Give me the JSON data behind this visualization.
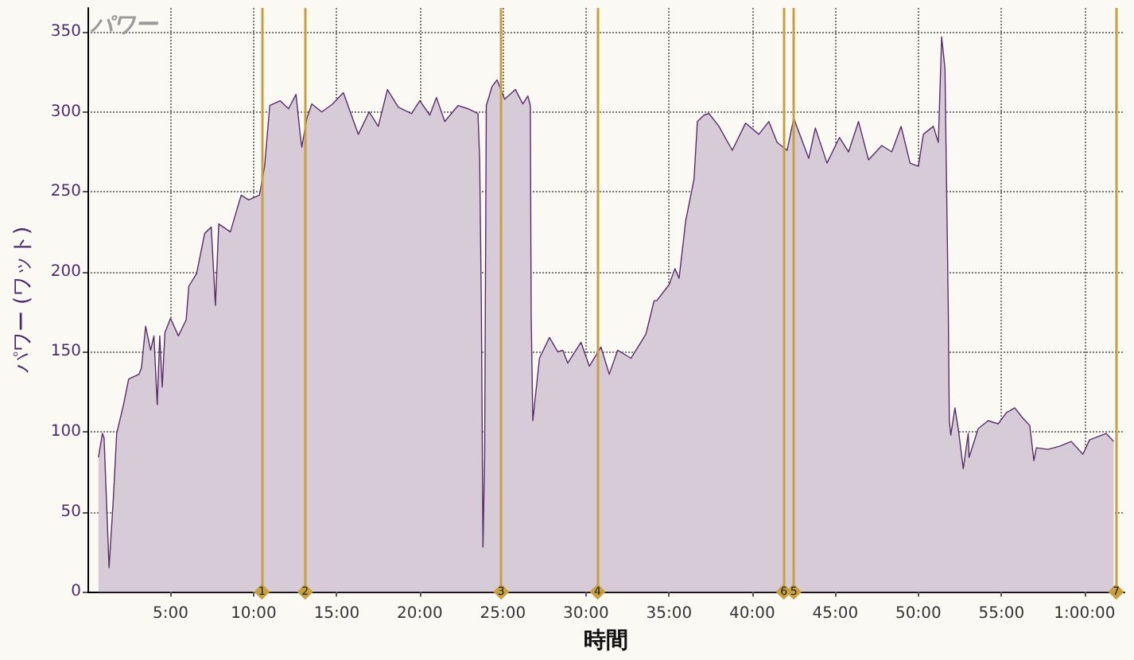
{
  "chart_data": {
    "type": "area",
    "title": "パワー",
    "xlabel": "時間",
    "ylabel": "パワー (ワット)",
    "xlim": [
      0,
      62.4
    ],
    "ylim": [
      0,
      365
    ],
    "xticks": [
      {
        "value": 5,
        "label": "5:00"
      },
      {
        "value": 10,
        "label": "10:00"
      },
      {
        "value": 15,
        "label": "15:00"
      },
      {
        "value": 20,
        "label": "20:00"
      },
      {
        "value": 25,
        "label": "25:00"
      },
      {
        "value": 30,
        "label": "30:00"
      },
      {
        "value": 35,
        "label": "35:00"
      },
      {
        "value": 40,
        "label": "40:00"
      },
      {
        "value": 45,
        "label": "45:00"
      },
      {
        "value": 50,
        "label": "50:00"
      },
      {
        "value": 55,
        "label": "55:00"
      },
      {
        "value": 60,
        "label": "1:00:00"
      }
    ],
    "yticks": [
      0,
      50,
      100,
      150,
      200,
      250,
      300,
      350
    ],
    "grid": true,
    "marker": "none",
    "line_style": "solid",
    "annotations": [
      {
        "text": "1",
        "x": 10.5,
        "y": 0
      },
      {
        "text": "2",
        "x": 13.1,
        "y": 0
      },
      {
        "text": "3",
        "x": 24.9,
        "y": 0
      },
      {
        "text": "4",
        "x": 30.7,
        "y": 0
      },
      {
        "text": "6",
        "x": 41.9,
        "y": 0
      },
      {
        "text": "5",
        "x": 42.5,
        "y": 0
      },
      {
        "text": "7",
        "x": 61.9,
        "y": 0
      }
    ],
    "series": [
      {
        "color": "#5a2d6a",
        "x": [
          0.66,
          0.9,
          1.0,
          1.3,
          1.55,
          1.76,
          2.17,
          2.48,
          3.1,
          3.25,
          3.5,
          3.8,
          4.0,
          4.2,
          4.35,
          4.5,
          4.66,
          5.0,
          5.47,
          5.94,
          6.1,
          6.57,
          7.05,
          7.45,
          7.7,
          7.9,
          8.6,
          9.25,
          9.7,
          10.35,
          10.66,
          10.97,
          11.6,
          12.1,
          12.55,
          12.8,
          12.9,
          13.2,
          13.5,
          14.1,
          14.75,
          15.4,
          15.85,
          16.3,
          16.95,
          17.5,
          18.05,
          18.7,
          19.5,
          20.0,
          20.6,
          21.0,
          21.5,
          22.3,
          22.9,
          23.5,
          23.6,
          23.7,
          23.8,
          23.9,
          24.0,
          24.35,
          24.65,
          25.1,
          25.75,
          26.2,
          26.5,
          26.65,
          26.7,
          26.8,
          27.2,
          27.8,
          28.3,
          28.6,
          28.9,
          29.7,
          30.2,
          30.9,
          31.4,
          31.9,
          32.7,
          33.6,
          34.1,
          34.25,
          35.0,
          35.35,
          35.6,
          36.0,
          36.5,
          36.7,
          37.1,
          37.4,
          38.0,
          38.8,
          39.6,
          40.4,
          41.0,
          41.5,
          42.1,
          42.5,
          43.4,
          43.8,
          44.5,
          45.25,
          45.8,
          46.4,
          47.0,
          47.8,
          48.4,
          48.96,
          49.5,
          50.0,
          50.3,
          50.9,
          51.2,
          51.4,
          51.6,
          51.8,
          51.86,
          51.95,
          52.2,
          52.4,
          52.7,
          53.0,
          53.05,
          53.6,
          54.2,
          54.8,
          55.3,
          55.8,
          56.25,
          56.7,
          56.95,
          57.1,
          57.8,
          58.5,
          59.2,
          59.9,
          60.3,
          61.3,
          61.75
        ],
        "values": [
          84,
          99,
          96,
          15,
          57,
          99,
          117,
          133,
          136,
          140,
          166,
          151,
          160,
          117,
          160,
          128,
          162,
          171,
          160,
          170,
          191,
          199,
          224,
          228,
          179,
          230,
          225,
          248,
          245,
          248,
          266,
          304,
          307,
          302,
          311,
          286,
          278,
          296,
          305,
          300,
          305,
          312,
          299,
          286,
          300,
          291,
          314,
          303,
          299,
          307,
          298,
          309,
          294,
          304,
          302,
          299,
          271,
          182,
          28,
          84,
          304,
          316,
          320,
          308,
          314,
          305,
          310,
          304,
          173,
          107,
          146,
          159,
          150,
          151,
          143,
          156,
          141,
          153,
          136,
          151,
          146,
          161,
          182,
          182,
          192,
          202,
          196,
          232,
          258,
          294,
          298,
          299,
          291,
          276,
          293,
          286,
          294,
          281,
          276,
          296,
          271,
          290,
          268,
          284,
          275,
          294,
          270,
          279,
          275,
          291,
          268,
          266,
          286,
          291,
          281,
          347,
          327,
          176,
          107,
          98,
          115,
          102,
          77,
          99,
          84,
          102,
          107,
          105,
          112,
          115,
          109,
          104,
          82,
          90,
          89,
          91,
          94,
          86,
          95,
          99,
          94
        ]
      }
    ],
    "ref_lines": [
      {
        "axis": "x",
        "value": 10.5,
        "color": "#c8a040"
      },
      {
        "axis": "x",
        "value": 13.1,
        "color": "#c8a040"
      },
      {
        "axis": "x",
        "value": 24.9,
        "color": "#c8a040"
      },
      {
        "axis": "x",
        "value": 30.7,
        "color": "#c8a040"
      },
      {
        "axis": "x",
        "value": 41.9,
        "color": "#c8a040"
      },
      {
        "axis": "x",
        "value": 42.5,
        "color": "#c8a040"
      },
      {
        "axis": "x",
        "value": 61.9,
        "color": "#c8a040"
      }
    ]
  }
}
